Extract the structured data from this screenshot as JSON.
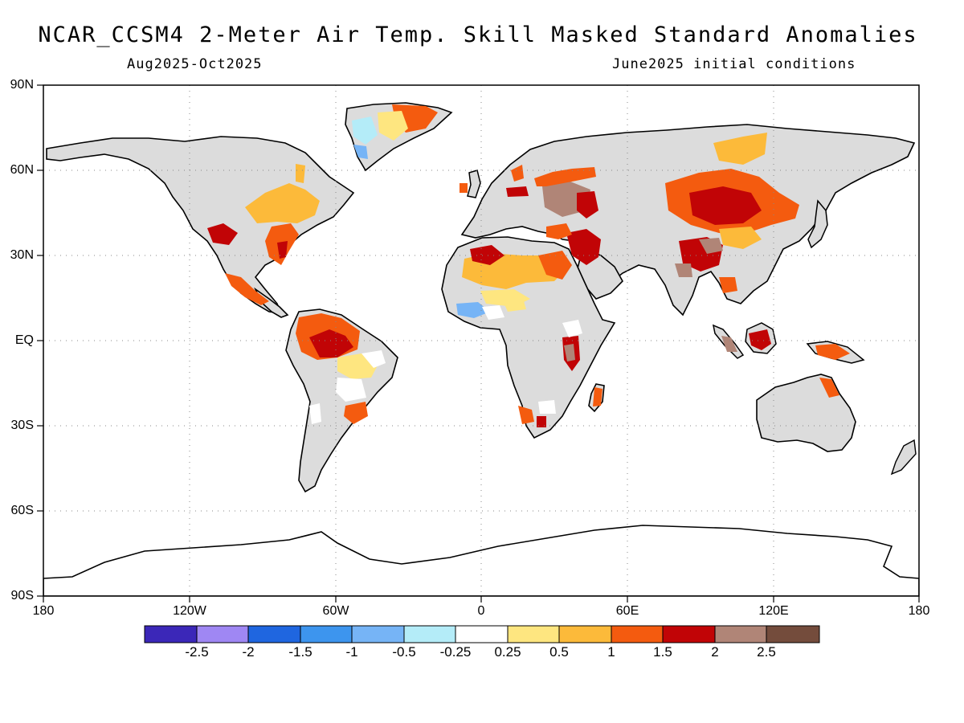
{
  "title": "NCAR_CCSM4 2-Meter Air Temp. Skill Masked Standard Anomalies",
  "subtitle_left": "Aug2025-Oct2025",
  "subtitle_right": "June2025 initial conditions",
  "lat_labels": [
    "90N",
    "60N",
    "30N",
    "EQ",
    "30S",
    "60S",
    "90S"
  ],
  "lon_labels": [
    "180",
    "120W",
    "60W",
    "0",
    "60E",
    "120E",
    "180"
  ],
  "colorbar": {
    "labels": [
      "-2.5",
      "-2",
      "-1.5",
      "-1",
      "-0.5",
      "-0.25",
      "0.25",
      "0.5",
      "1",
      "1.5",
      "2",
      "2.5"
    ],
    "colors": [
      "#3b27b8",
      "#9f87f3",
      "#1f66e0",
      "#3d95ee",
      "#76b4f6",
      "#b4ecf8",
      "#ffffff",
      "#fee680",
      "#fcba3a",
      "#f45b0f",
      "#c10406",
      "#b08577",
      "#744c3c"
    ]
  },
  "map": {
    "land_color": "#dcdcdc",
    "ocean_color": "#ffffff",
    "anomaly_regions": [
      {
        "name": "greenland-east",
        "color": "#f45b0f"
      },
      {
        "name": "greenland-south",
        "color": "#b4ecf8"
      },
      {
        "name": "eastern-north-america",
        "color": "#fcba3a"
      },
      {
        "name": "southeast-us",
        "color": "#f45b0f"
      },
      {
        "name": "western-us",
        "color": "#c10406"
      },
      {
        "name": "mexico",
        "color": "#f45b0f"
      },
      {
        "name": "northern-south-america",
        "color": "#f45b0f"
      },
      {
        "name": "amazon",
        "color": "#c10406"
      },
      {
        "name": "brazil-east",
        "color": "#fee680"
      },
      {
        "name": "southern-brazil",
        "color": "#f45b0f"
      },
      {
        "name": "sahara",
        "color": "#fcba3a"
      },
      {
        "name": "north-africa",
        "color": "#c10406"
      },
      {
        "name": "west-africa",
        "color": "#76b4f6"
      },
      {
        "name": "east-africa",
        "color": "#c10406"
      },
      {
        "name": "madagascar",
        "color": "#f45b0f"
      },
      {
        "name": "southern-africa",
        "color": "#f45b0f"
      },
      {
        "name": "middle-east",
        "color": "#c10406"
      },
      {
        "name": "eastern-europe",
        "color": "#b08577"
      },
      {
        "name": "scandinavia",
        "color": "#f45b0f"
      },
      {
        "name": "siberia",
        "color": "#fcba3a"
      },
      {
        "name": "central-asia",
        "color": "#c10406"
      },
      {
        "name": "tibet",
        "color": "#b08577"
      },
      {
        "name": "china",
        "color": "#f45b0f"
      },
      {
        "name": "borneo",
        "color": "#c10406"
      },
      {
        "name": "new-guinea",
        "color": "#f45b0f"
      },
      {
        "name": "north-australia",
        "color": "#f45b0f"
      }
    ]
  }
}
